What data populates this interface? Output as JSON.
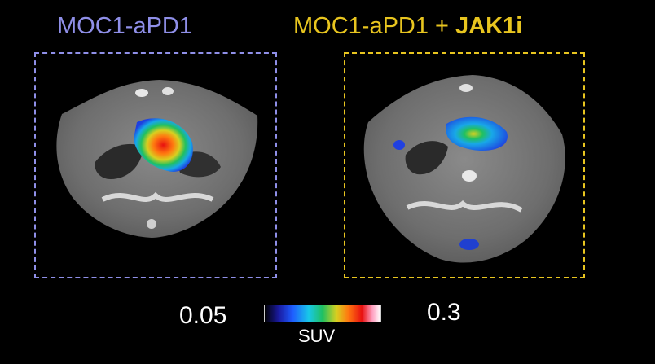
{
  "panels": {
    "left": {
      "title": "MOC1-aPD1"
    },
    "right": {
      "title_prefix": "MOC1-aPD1 + ",
      "title_bold": "JAK1i"
    }
  },
  "colorbar": {
    "min": "0.05",
    "max": "0.3",
    "label": "SUV"
  },
  "colors": {
    "left_frame": "#8f8fe8",
    "right_frame": "#e8c51f",
    "background": "#000000"
  }
}
